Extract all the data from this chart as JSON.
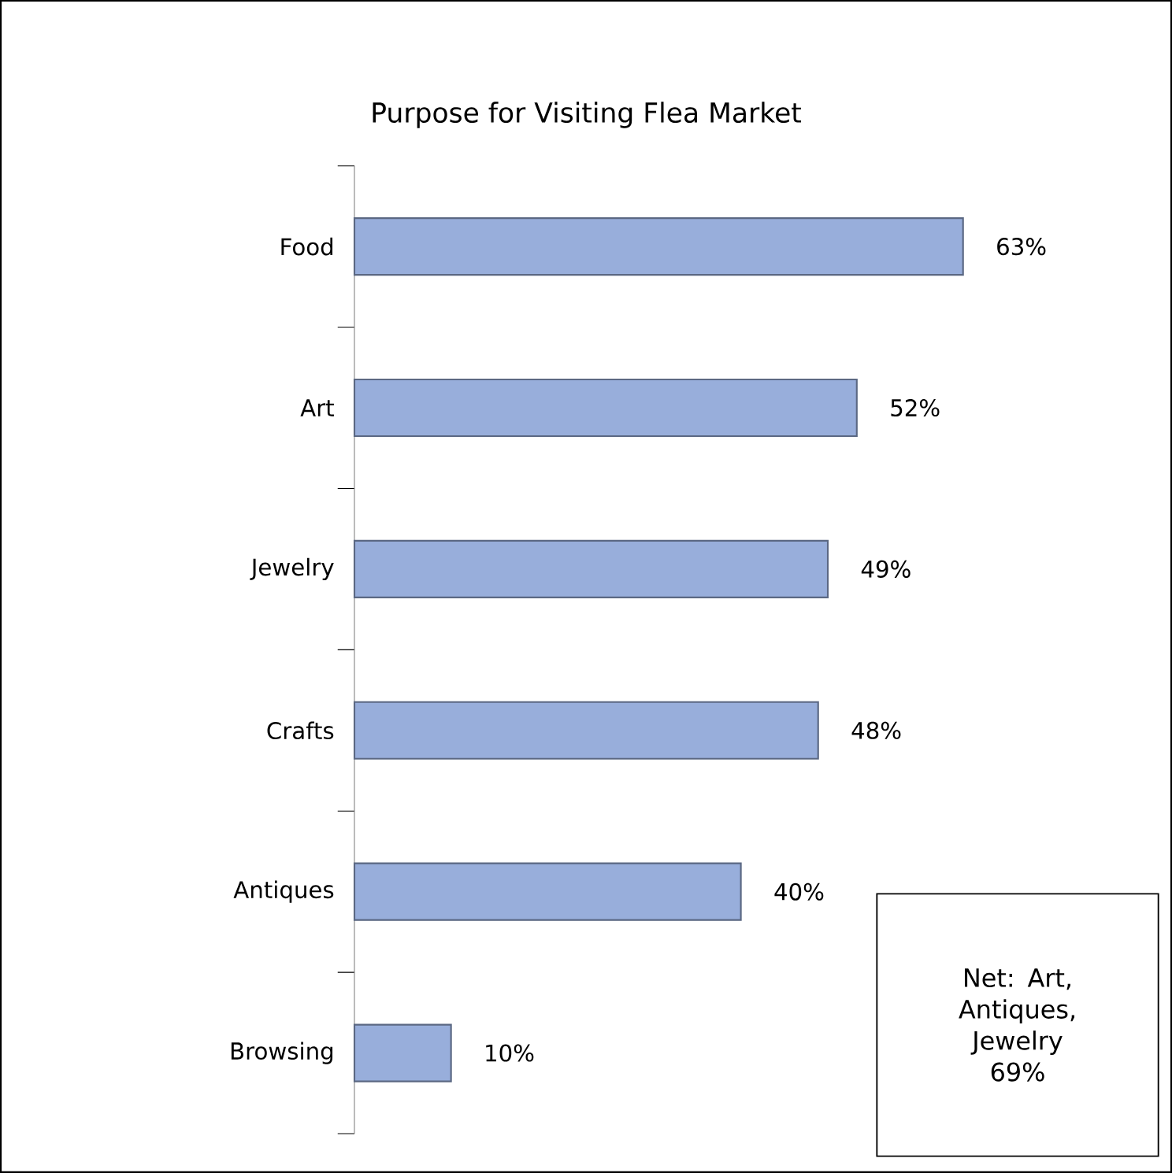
{
  "chart_data": {
    "type": "bar",
    "orientation": "horizontal",
    "title": "Purpose for Visiting Flea Market",
    "categories": [
      "Food",
      "Art",
      "Jewelry",
      "Crafts",
      "Antiques",
      "Browsing"
    ],
    "values": [
      63,
      52,
      49,
      48,
      40,
      10
    ],
    "value_labels": [
      "63%",
      "52%",
      "49%",
      "48%",
      "40%",
      "10%"
    ],
    "color": "#98aedb",
    "annotations": [
      "Net: Art, Antiques, Jewelry 69%"
    ]
  }
}
